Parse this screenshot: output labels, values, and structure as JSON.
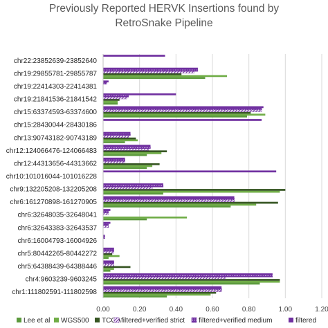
{
  "chart_data": {
    "type": "bar",
    "orientation": "horizontal",
    "title_lines": [
      "Previously Reported HERVK Insertions found by",
      "RetroSnake Pipeline"
    ],
    "categories": [
      "chr1:111802591-111802598",
      "chr4:9603239-9603245",
      "chr5:64388439-64388446",
      "chr5:80442265-80442272",
      "chr6:16004793-16004926",
      "chr6:32643383-32643537",
      "chr6:32648035-32648041",
      "chr6:161270898-161270905",
      "chr9:132205208-132205208",
      "chr10:101016044-101016228",
      "chr12:44313656-44313662",
      "chr12:124066476-124066483",
      "chr13:90743182-90743189",
      "chr15:28430044-28430186",
      "chr15:63374593-63374600",
      "chr19:21841536-21841542",
      "chr19:22414303-22414381",
      "chr19:29855781-29855787",
      "chr22:23852639-23852640"
    ],
    "series": [
      {
        "name": "Lee et al",
        "color": "#5b9a3c",
        "pattern": "solid",
        "values": [
          0.35,
          0.86,
          0.04,
          0.03,
          0.0,
          0.0,
          0.24,
          0.7,
          0.33,
          0.0,
          0.24,
          0.24,
          0.12,
          0.0,
          0.79,
          0.08,
          0.0,
          0.56,
          0.0
        ]
      },
      {
        "name": "WGS500",
        "color": "#70ad47",
        "pattern": "solid",
        "values": [
          0.59,
          0.97,
          0.06,
          0.09,
          0.0,
          0.0,
          0.46,
          0.84,
          0.97,
          0.0,
          0.27,
          0.32,
          0.19,
          0.0,
          0.89,
          0.08,
          0.0,
          0.68,
          0.0
        ]
      },
      {
        "name": "TCGA",
        "color": "#375623",
        "pattern": "solid",
        "values": [
          0.62,
          0.97,
          0.15,
          0.05,
          0.0,
          0.0,
          0.0,
          0.96,
          1.0,
          0.0,
          0.31,
          0.35,
          0.18,
          0.0,
          0.81,
          0.09,
          0.0,
          0.43,
          0.0
        ]
      },
      {
        "name": "filtered+verified strict",
        "color": "#7030a0",
        "pattern": "hatch",
        "values": [
          0.65,
          0.67,
          0.06,
          0.06,
          0.0,
          0.03,
          0.03,
          0.72,
          0.27,
          0.0,
          0.12,
          0.25,
          0.14,
          0.0,
          0.87,
          0.13,
          0.0,
          0.5,
          0.0
        ]
      },
      {
        "name": "filtered+verified medium",
        "color": "#7030a0",
        "pattern": "dots",
        "values": [
          0.65,
          0.93,
          0.06,
          0.06,
          0.01,
          0.03,
          0.03,
          0.72,
          0.33,
          0.0,
          0.12,
          0.26,
          0.15,
          0.0,
          0.87,
          0.14,
          0.02,
          0.52,
          0.0
        ]
      },
      {
        "name": "filtered",
        "color": "#7030a0",
        "pattern": "solid",
        "values": [
          0.65,
          0.93,
          0.06,
          0.06,
          0.01,
          0.04,
          0.04,
          0.72,
          0.33,
          0.95,
          0.12,
          0.26,
          0.15,
          0.87,
          0.88,
          0.4,
          0.03,
          0.52,
          0.34
        ]
      }
    ],
    "x_ticks": [
      "0.00",
      "0.20",
      "0.40",
      "0.60",
      "0.80",
      "1.00",
      "1.20"
    ],
    "xlim": [
      0,
      1.2
    ],
    "grid": "vertical",
    "legend_position": "bottom"
  }
}
